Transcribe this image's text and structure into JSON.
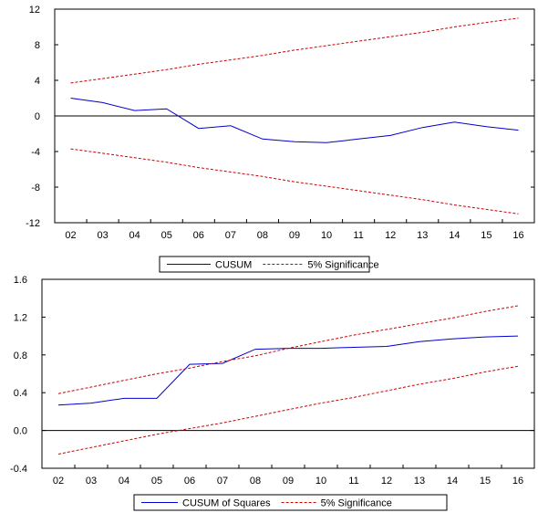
{
  "chart_data": [
    {
      "type": "line",
      "categories": [
        "02",
        "03",
        "04",
        "05",
        "06",
        "07",
        "08",
        "09",
        "10",
        "11",
        "12",
        "13",
        "14",
        "15",
        "16"
      ],
      "ylim": [
        -12,
        12
      ],
      "yticks": [
        12,
        8,
        4,
        0,
        -4,
        -8,
        -12
      ],
      "ytick_labels": [
        "12",
        "8",
        "4",
        "0",
        "-4",
        "-8",
        "-12"
      ],
      "zero_line": true,
      "legend_position": "bottom-center",
      "series": [
        {
          "name": "CUSUM",
          "color": "#0000cc",
          "style": "solid",
          "values": [
            2.0,
            1.5,
            0.6,
            0.8,
            -1.4,
            -1.1,
            -2.6,
            -2.9,
            -3.0,
            -2.6,
            -2.2,
            -1.3,
            -0.7,
            -1.2,
            -1.6
          ]
        },
        {
          "name": "5% Significance",
          "color": "#cc0000",
          "style": "dashed",
          "values": [
            3.7,
            4.2,
            4.7,
            5.2,
            5.8,
            6.3,
            6.8,
            7.4,
            7.9,
            8.4,
            8.9,
            9.4,
            10.0,
            10.5,
            11.0
          ]
        },
        {
          "name": "5% Significance",
          "color": "#cc0000",
          "style": "dashed",
          "show_in_legend": false,
          "values": [
            -3.7,
            -4.2,
            -4.7,
            -5.2,
            -5.8,
            -6.3,
            -6.8,
            -7.4,
            -7.9,
            -8.4,
            -8.9,
            -9.4,
            -10.0,
            -10.5,
            -11.0
          ]
        }
      ]
    },
    {
      "type": "line",
      "categories": [
        "02",
        "03",
        "04",
        "05",
        "06",
        "07",
        "08",
        "09",
        "10",
        "11",
        "12",
        "13",
        "14",
        "15",
        "16"
      ],
      "ylim": [
        -0.4,
        1.6
      ],
      "yticks": [
        1.6,
        1.2,
        0.8,
        0.4,
        0.0,
        -0.4
      ],
      "ytick_labels": [
        "1.6",
        "1.2",
        "0.8",
        "0.4",
        "0.0",
        "-0.4"
      ],
      "zero_line": true,
      "legend_position": "bottom-center",
      "series": [
        {
          "name": "CUSUM of Squares",
          "color": "#0000cc",
          "style": "solid",
          "values": [
            0.27,
            0.29,
            0.34,
            0.34,
            0.7,
            0.71,
            0.86,
            0.87,
            0.87,
            0.88,
            0.89,
            0.94,
            0.97,
            0.99,
            1.0
          ]
        },
        {
          "name": "5% Significance",
          "color": "#cc0000",
          "style": "dashed",
          "values": [
            0.39,
            0.46,
            0.53,
            0.6,
            0.66,
            0.73,
            0.79,
            0.87,
            0.94,
            1.01,
            1.07,
            1.13,
            1.19,
            1.26,
            1.32
          ]
        },
        {
          "name": "5% Significance",
          "color": "#cc0000",
          "style": "dashed",
          "show_in_legend": false,
          "values": [
            -0.25,
            -0.18,
            -0.11,
            -0.04,
            0.02,
            0.08,
            0.15,
            0.22,
            0.29,
            0.35,
            0.42,
            0.49,
            0.55,
            0.62,
            0.68
          ]
        }
      ]
    }
  ]
}
